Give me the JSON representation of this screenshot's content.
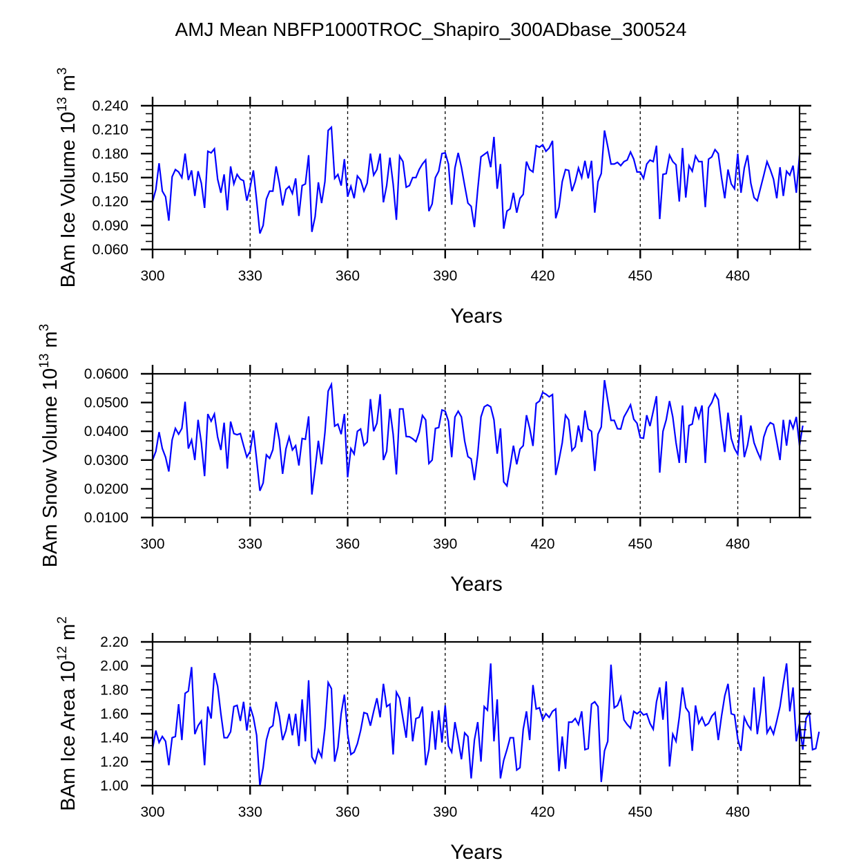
{
  "title": "AMJ Mean NBFP1000TROC_Shapiro_300ADbase_300524",
  "chart_data": [
    {
      "type": "line",
      "ylabel": "BAm Ice Volume 10^13 m^3",
      "ylabel_parts": {
        "main": "BAm Ice Volume 10",
        "exp1": "13",
        "unit": " m",
        "exp2": "3"
      },
      "xlabel": "Years",
      "xlim": [
        300,
        499
      ],
      "ylim": [
        0.06,
        0.24
      ],
      "xticks": [
        300,
        330,
        360,
        390,
        420,
        450,
        480
      ],
      "xtick_labels": [
        "300",
        "330",
        "360",
        "390",
        "420",
        "450",
        "480"
      ],
      "yticks": [
        0.06,
        0.09,
        0.12,
        0.15,
        0.18,
        0.21,
        0.24
      ],
      "ytick_labels": [
        "0.060",
        "0.090",
        "0.120",
        "0.150",
        "0.180",
        "0.210",
        "0.240"
      ],
      "vlines": [
        330,
        360,
        390,
        420,
        450,
        480
      ],
      "line_color": "#0000ff",
      "x_start": 300,
      "values": [
        0.12,
        0.135,
        0.168,
        0.133,
        0.126,
        0.096,
        0.151,
        0.16,
        0.157,
        0.15,
        0.18,
        0.147,
        0.159,
        0.127,
        0.158,
        0.143,
        0.112,
        0.183,
        0.181,
        0.186,
        0.148,
        0.131,
        0.154,
        0.109,
        0.164,
        0.142,
        0.154,
        0.148,
        0.146,
        0.121,
        0.138,
        0.159,
        0.121,
        0.08,
        0.09,
        0.123,
        0.133,
        0.133,
        0.164,
        0.143,
        0.115,
        0.135,
        0.139,
        0.13,
        0.149,
        0.102,
        0.14,
        0.142,
        0.178,
        0.082,
        0.101,
        0.144,
        0.118,
        0.145,
        0.209,
        0.213,
        0.149,
        0.154,
        0.14,
        0.173,
        0.126,
        0.139,
        0.124,
        0.152,
        0.147,
        0.133,
        0.143,
        0.18,
        0.153,
        0.16,
        0.18,
        0.119,
        0.14,
        0.175,
        0.142,
        0.097,
        0.177,
        0.17,
        0.138,
        0.14,
        0.15,
        0.15,
        0.16,
        0.167,
        0.172,
        0.108,
        0.117,
        0.15,
        0.158,
        0.18,
        0.181,
        0.167,
        0.116,
        0.162,
        0.181,
        0.163,
        0.14,
        0.118,
        0.114,
        0.088,
        0.135,
        0.176,
        0.179,
        0.182,
        0.163,
        0.201,
        0.136,
        0.167,
        0.086,
        0.108,
        0.111,
        0.131,
        0.106,
        0.124,
        0.129,
        0.17,
        0.16,
        0.157,
        0.19,
        0.188,
        0.191,
        0.183,
        0.187,
        0.196,
        0.099,
        0.113,
        0.145,
        0.16,
        0.159,
        0.133,
        0.145,
        0.162,
        0.15,
        0.171,
        0.149,
        0.171,
        0.106,
        0.145,
        0.155,
        0.209,
        0.189,
        0.167,
        0.167,
        0.169,
        0.165,
        0.17,
        0.172,
        0.182,
        0.173,
        0.157,
        0.157,
        0.149,
        0.167,
        0.172,
        0.17,
        0.19,
        0.098,
        0.154,
        0.155,
        0.178,
        0.17,
        0.166,
        0.12,
        0.187,
        0.125,
        0.165,
        0.158,
        0.177,
        0.17,
        0.17,
        0.113,
        0.173,
        0.176,
        0.185,
        0.18,
        0.15,
        0.124,
        0.16,
        0.142,
        0.136,
        0.18,
        0.131,
        0.162,
        0.178,
        0.143,
        0.125,
        0.121,
        0.137,
        0.153,
        0.17,
        0.16,
        0.148,
        0.124,
        0.163,
        0.127,
        0.158,
        0.153,
        0.165,
        0.131,
        0.178
      ]
    },
    {
      "type": "line",
      "ylabel": "BAm Snow Volume 10^13 m^3",
      "ylabel_parts": {
        "main": "BAm Snow Volume 10",
        "exp1": "13",
        "unit": " m",
        "exp2": "3"
      },
      "xlabel": "Years",
      "xlim": [
        300,
        499
      ],
      "ylim": [
        0.01,
        0.06
      ],
      "xticks": [
        300,
        330,
        360,
        390,
        420,
        450,
        480
      ],
      "xtick_labels": [
        "300",
        "330",
        "360",
        "390",
        "420",
        "450",
        "480"
      ],
      "yticks": [
        0.01,
        0.02,
        0.03,
        0.04,
        0.05,
        0.06
      ],
      "ytick_labels": [
        "0.0100",
        "0.0200",
        "0.0300",
        "0.0400",
        "0.0500",
        "0.0600"
      ],
      "vlines": [
        330,
        360,
        390,
        420,
        450,
        480
      ],
      "line_color": "#0000ff",
      "x_start": 300,
      "values": [
        0.03,
        0.033,
        0.0397,
        0.034,
        0.031,
        0.026,
        0.037,
        0.041,
        0.039,
        0.041,
        0.0503,
        0.034,
        0.037,
        0.03,
        0.044,
        0.036,
        0.0244,
        0.046,
        0.0435,
        0.046,
        0.038,
        0.0335,
        0.043,
        0.027,
        0.0434,
        0.0392,
        0.0388,
        0.0392,
        0.035,
        0.031,
        0.033,
        0.0403,
        0.03,
        0.0193,
        0.022,
        0.0318,
        0.0306,
        0.0336,
        0.043,
        0.037,
        0.0252,
        0.0339,
        0.038,
        0.0335,
        0.035,
        0.0281,
        0.0375,
        0.0372,
        0.0452,
        0.018,
        0.027,
        0.0367,
        0.0285,
        0.0395,
        0.054,
        0.0563,
        0.0418,
        0.0425,
        0.039,
        0.046,
        0.024,
        0.034,
        0.0321,
        0.04,
        0.0408,
        0.0351,
        0.0363,
        0.0512,
        0.04,
        0.0428,
        0.0529,
        0.03,
        0.033,
        0.0478,
        0.039,
        0.025,
        0.0478,
        0.0478,
        0.0382,
        0.0381,
        0.0374,
        0.0364,
        0.0396,
        0.0455,
        0.044,
        0.0288,
        0.03,
        0.041,
        0.0413,
        0.0474,
        0.047,
        0.0435,
        0.031,
        0.045,
        0.047,
        0.045,
        0.0366,
        0.0312,
        0.0304,
        0.023,
        0.032,
        0.045,
        0.0485,
        0.0492,
        0.0485,
        0.044,
        0.0322,
        0.041,
        0.0224,
        0.021,
        0.0278,
        0.035,
        0.0285,
        0.0338,
        0.035,
        0.0456,
        0.041,
        0.0349,
        0.0497,
        0.0505,
        0.0535,
        0.0529,
        0.052,
        0.0528,
        0.0248,
        0.03,
        0.036,
        0.0456,
        0.044,
        0.0333,
        0.0346,
        0.042,
        0.0363,
        0.0472,
        0.0408,
        0.04,
        0.0262,
        0.039,
        0.0415,
        0.0578,
        0.0508,
        0.0438,
        0.0438,
        0.0409,
        0.0408,
        0.045,
        0.047,
        0.0492,
        0.0442,
        0.0428,
        0.0378,
        0.0376,
        0.0456,
        0.0418,
        0.047,
        0.0522,
        0.0256,
        0.04,
        0.044,
        0.0505,
        0.045,
        0.036,
        0.029,
        0.049,
        0.029,
        0.042,
        0.0425,
        0.0485,
        0.0446,
        0.049,
        0.029,
        0.0482,
        0.05,
        0.053,
        0.051,
        0.041,
        0.0328,
        0.0465,
        0.0375,
        0.034,
        0.032,
        0.0456,
        0.031,
        0.0352,
        0.042,
        0.036,
        0.033,
        0.0304,
        0.038,
        0.0414,
        0.043,
        0.0424,
        0.0364,
        0.03,
        0.044,
        0.035,
        0.044,
        0.041,
        0.045,
        0.035,
        0.042
      ]
    },
    {
      "type": "line",
      "ylabel": "BAm Ice Area 10^12 m^2",
      "ylabel_parts": {
        "main": "BAm Ice Area 10",
        "exp1": "12",
        "unit": " m",
        "exp2": "2"
      },
      "xlabel": "Years",
      "xlim": [
        300,
        499
      ],
      "ylim": [
        1.0,
        2.2
      ],
      "xticks": [
        300,
        330,
        360,
        390,
        420,
        450,
        480
      ],
      "xtick_labels": [
        "300",
        "330",
        "360",
        "390",
        "420",
        "450",
        "480"
      ],
      "yticks": [
        1.0,
        1.2,
        1.4,
        1.6,
        1.8,
        2.0,
        2.2
      ],
      "ytick_labels": [
        "1.00",
        "1.20",
        "1.40",
        "1.60",
        "1.80",
        "2.00",
        "2.20"
      ],
      "vlines": [
        330,
        360,
        390,
        420,
        450,
        480
      ],
      "line_color": "#0000ff",
      "x_start": 300,
      "values": [
        1.31,
        1.46,
        1.36,
        1.41,
        1.37,
        1.17,
        1.4,
        1.41,
        1.68,
        1.38,
        1.77,
        1.79,
        1.99,
        1.43,
        1.5,
        1.54,
        1.17,
        1.66,
        1.56,
        1.94,
        1.83,
        1.6,
        1.4,
        1.4,
        1.45,
        1.66,
        1.67,
        1.54,
        1.7,
        1.46,
        1.66,
        1.57,
        1.42,
        1.0,
        1.15,
        1.38,
        1.48,
        1.5,
        1.7,
        1.58,
        1.38,
        1.46,
        1.6,
        1.42,
        1.6,
        1.33,
        1.72,
        1.37,
        1.88,
        1.24,
        1.19,
        1.3,
        1.24,
        1.48,
        1.86,
        1.81,
        1.2,
        1.32,
        1.6,
        1.76,
        1.43,
        1.26,
        1.28,
        1.35,
        1.46,
        1.61,
        1.6,
        1.5,
        1.62,
        1.73,
        1.57,
        1.85,
        1.66,
        1.68,
        1.26,
        1.78,
        1.73,
        1.56,
        1.4,
        1.74,
        1.37,
        1.56,
        1.57,
        1.66,
        1.17,
        1.3,
        1.62,
        1.3,
        1.63,
        1.36,
        1.67,
        1.33,
        1.28,
        1.53,
        1.38,
        1.22,
        1.44,
        1.41,
        1.06,
        1.38,
        1.53,
        1.2,
        1.66,
        1.63,
        2.02,
        1.37,
        1.72,
        1.06,
        1.21,
        1.3,
        1.4,
        1.4,
        1.13,
        1.15,
        1.47,
        1.62,
        1.38,
        1.84,
        1.64,
        1.65,
        1.55,
        1.6,
        1.57,
        1.62,
        1.64,
        1.12,
        1.41,
        1.14,
        1.53,
        1.53,
        1.56,
        1.51,
        1.62,
        1.3,
        1.31,
        1.68,
        1.7,
        1.66,
        1.03,
        1.29,
        1.37,
        2.01,
        1.65,
        1.67,
        1.74,
        1.55,
        1.51,
        1.48,
        1.62,
        1.6,
        1.62,
        1.59,
        1.6,
        1.52,
        1.47,
        1.7,
        1.82,
        1.55,
        1.87,
        1.16,
        1.43,
        1.37,
        1.57,
        1.82,
        1.65,
        1.61,
        1.29,
        1.67,
        1.52,
        1.57,
        1.5,
        1.52,
        1.58,
        1.61,
        1.38,
        1.58,
        1.75,
        1.85,
        1.6,
        1.59,
        1.39,
        1.29,
        1.57,
        1.51,
        1.47,
        1.82,
        1.43,
        1.62,
        1.91,
        1.44,
        1.49,
        1.43,
        1.54,
        1.66,
        1.85,
        2.02,
        1.62,
        1.82,
        1.37,
        1.52,
        1.3,
        1.56,
        1.61,
        1.3,
        1.31,
        1.45
      ]
    }
  ]
}
